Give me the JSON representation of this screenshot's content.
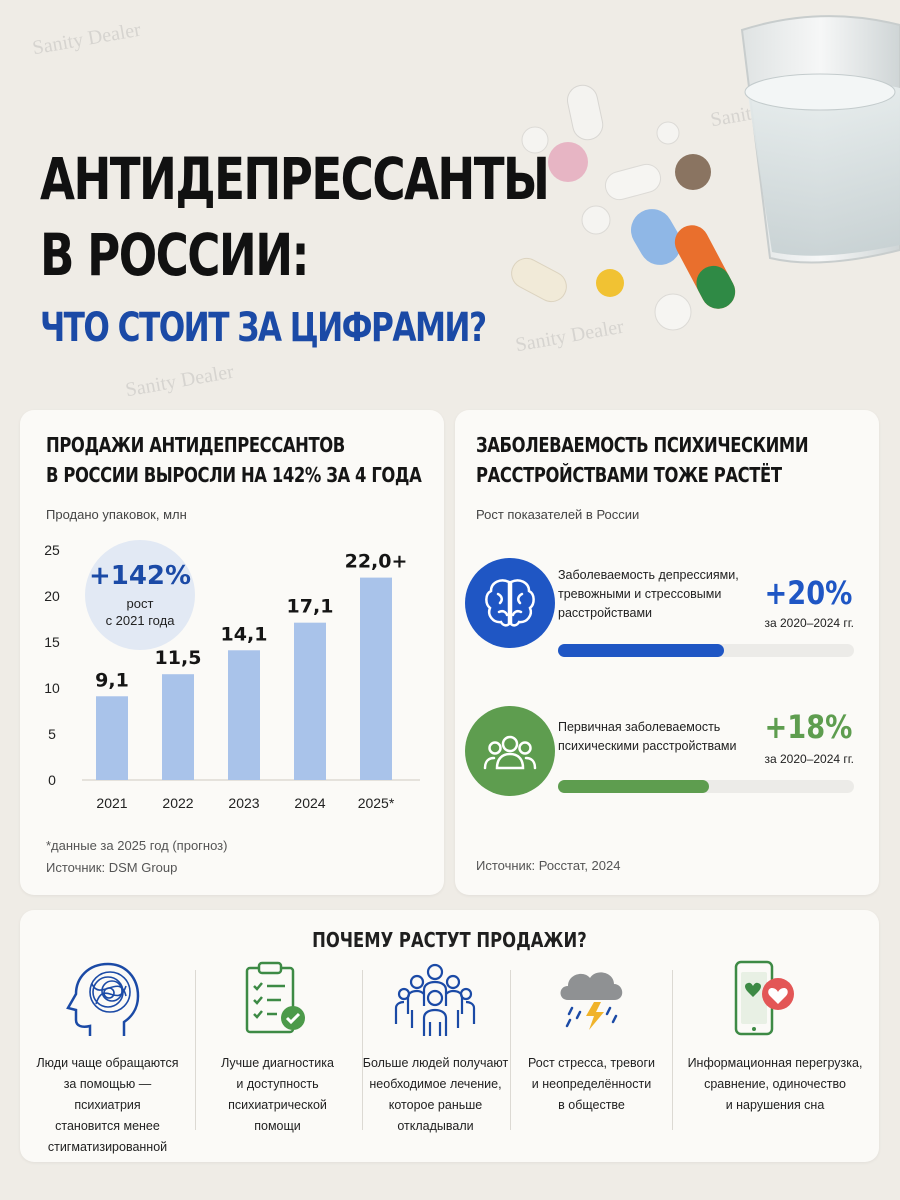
{
  "watermark": "Sanity Dealer",
  "title": {
    "line1": "АНТИДЕПРЕССАНТЫ",
    "line2": "В РОССИИ:",
    "line3": "ЧТО СТОИТ ЗА ЦИФРАМИ?"
  },
  "sales_card": {
    "heading_line1": "ПРОДАЖИ АНТИДЕПРЕССАНТОВ",
    "heading_line2": "В РОССИИ ВЫРОСЛИ НА 142% ЗА 4 ГОДА",
    "unit_label": "Продано упаковок, млн",
    "badge_value": "+142%",
    "badge_line1": "рост",
    "badge_line2": "с 2021 года",
    "footnote": "*данные за 2025 год (прогноз)",
    "source": "Источник: DSM Group"
  },
  "chart_data": {
    "type": "bar",
    "categories": [
      "2021",
      "2022",
      "2023",
      "2024",
      "2025*"
    ],
    "values": [
      9.1,
      11.5,
      14.1,
      17.1,
      22.0
    ],
    "value_labels": [
      "9,1",
      "11,5",
      "14,1",
      "17,1",
      "22,0+"
    ],
    "yticks": [
      "0",
      "5",
      "10",
      "15",
      "20",
      "25"
    ],
    "ylim": [
      0,
      25
    ],
    "title": "",
    "xlabel": "",
    "ylabel": "Продано упаковок, млн",
    "bar_color": "#a9c3ea",
    "grid": false
  },
  "incidence_card": {
    "heading_line1": "ЗАБОЛЕВАЕМОСТЬ ПСИХИЧЕСКИМИ",
    "heading_line2": "РАССТРОЙСТВАМИ ТОЖЕ РАСТЁТ",
    "subtitle": "Рост показателей в России",
    "rows": [
      {
        "label_line1": "Заболеваемость депрессиями,",
        "label_line2": "тревожными и стрессовыми",
        "label_line3": "расстройствами",
        "value": "+20%",
        "period": "за 2020–2024 гг.",
        "progress": 0.56,
        "color": "#1f56c4",
        "icon": "brain-icon"
      },
      {
        "label_line1": "Первичная заболеваемость",
        "label_line2": "психическими расстройствами",
        "label_line3": "",
        "value": "+18%",
        "period": "за 2020–2024 гг.",
        "progress": 0.51,
        "color": "#5e9d4f",
        "icon": "people-icon"
      }
    ],
    "source": "Источник: Росстат, 2024"
  },
  "reasons": {
    "heading": "ПОЧЕМУ РАСТУТ ПРОДАЖИ?",
    "items": [
      {
        "icon": "head-icon",
        "lines": [
          "Люди чаще обращаются",
          "за помощью — психиатрия",
          "становится менее",
          "стигматизированной"
        ]
      },
      {
        "icon": "clipboard-icon",
        "lines": [
          "Лучше диагностика",
          "и доступность",
          "психиатрической",
          "помощи"
        ]
      },
      {
        "icon": "crowd-icon",
        "lines": [
          "Больше людей получают",
          "необходимое лечение,",
          "которое раньше",
          "откладывали"
        ]
      },
      {
        "icon": "storm-cloud-icon",
        "lines": [
          "Рост стресса, тревоги",
          "и неопределённости",
          "в обществе",
          ""
        ]
      },
      {
        "icon": "phone-hearts-icon",
        "lines": [
          "Информационная перегрузка,",
          "сравнение, одиночество",
          "и нарушения сна",
          ""
        ]
      }
    ]
  }
}
